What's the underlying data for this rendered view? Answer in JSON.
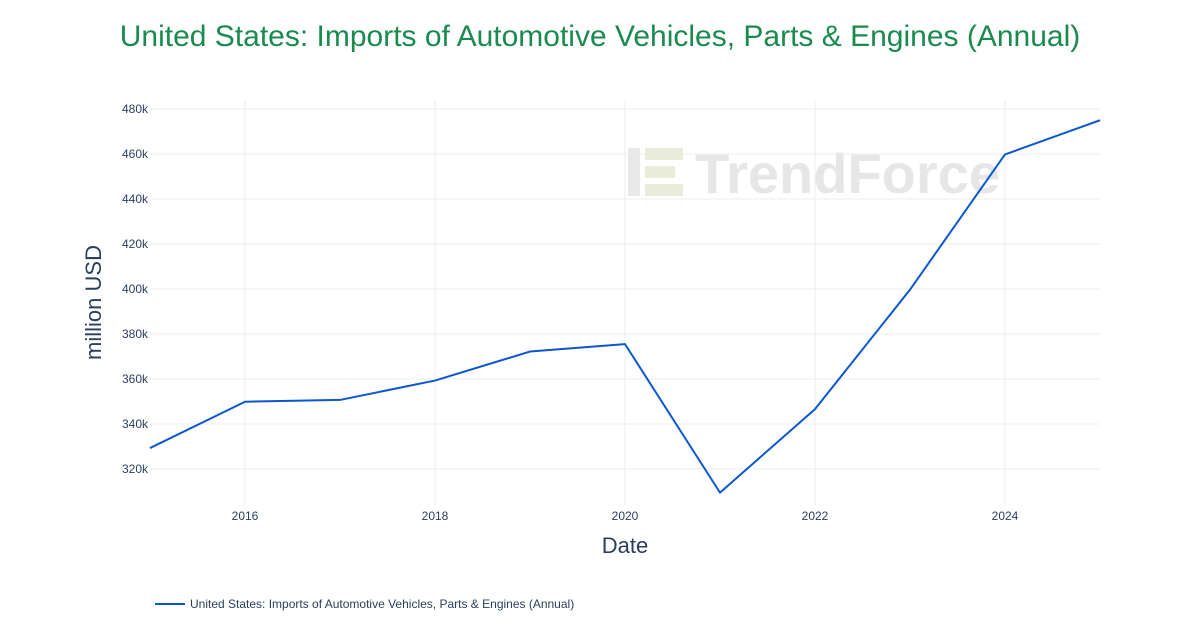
{
  "watermark": "TrendForce",
  "chart_data": {
    "type": "line",
    "title": "United States: Imports of Automotive Vehicles, Parts & Engines (Annual)",
    "xlabel": "Date",
    "ylabel": "million USD",
    "x": [
      "2015",
      "2016",
      "2017",
      "2018",
      "2019",
      "2020",
      "2021",
      "2022",
      "2023",
      "2024",
      "2025"
    ],
    "series": [
      {
        "name": "United States: Imports of Automotive Vehicles, Parts & Engines (Annual)",
        "color": "#0b57d0",
        "values": [
          329300,
          349900,
          350700,
          359300,
          372200,
          375500,
          309500,
          346600,
          399700,
          459800,
          475000
        ]
      }
    ],
    "x_ticks": [
      "2016",
      "2018",
      "2020",
      "2022",
      "2024"
    ],
    "y_ticks": [
      "320k",
      "340k",
      "360k",
      "380k",
      "400k",
      "420k",
      "440k",
      "460k",
      "480k"
    ],
    "y_tick_values": [
      320000,
      340000,
      360000,
      380000,
      400000,
      420000,
      440000,
      460000,
      480000
    ],
    "ylim": [
      304000,
      484000
    ],
    "grid": true,
    "legend_position": "bottom-left"
  }
}
